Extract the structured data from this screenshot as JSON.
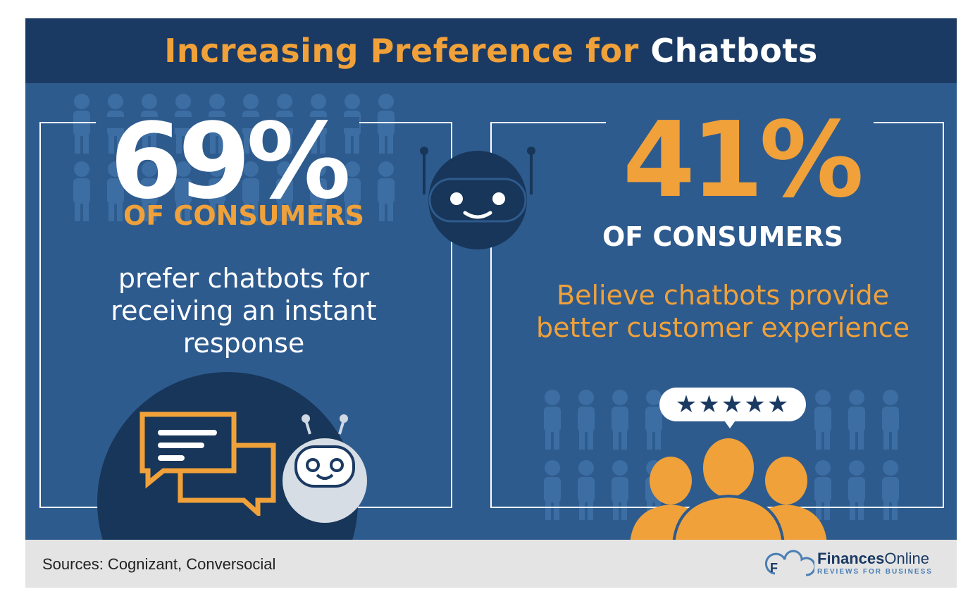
{
  "header": {
    "title_part1": "Increasing Preference for",
    "title_part2": "Chatbots"
  },
  "left_stat": {
    "percent": "69%",
    "label": "OF CONSUMERS",
    "description": "prefer chatbots for receiving an instant response"
  },
  "right_stat": {
    "percent": "41%",
    "label": "OF CONSUMERS",
    "description": "Believe chatbots provide better customer experience",
    "rating_stars": "★★★★★"
  },
  "footer": {
    "sources": "Sources: Cognizant, Conversocial",
    "logo_bold": "Finances",
    "logo_regular": "Online",
    "logo_tagline": "REVIEWS FOR BUSINESS"
  },
  "colors": {
    "header_bg": "#1b3a63",
    "panel_bg": "#2e5b8e",
    "accent_orange": "#f0a13a",
    "footer_bg": "#e4e4e4"
  },
  "icons": [
    "people-crowd-icon",
    "robot-head-icon",
    "chat-bubbles-icon",
    "robot-icon",
    "users-group-icon",
    "finances-online-logo-icon"
  ]
}
